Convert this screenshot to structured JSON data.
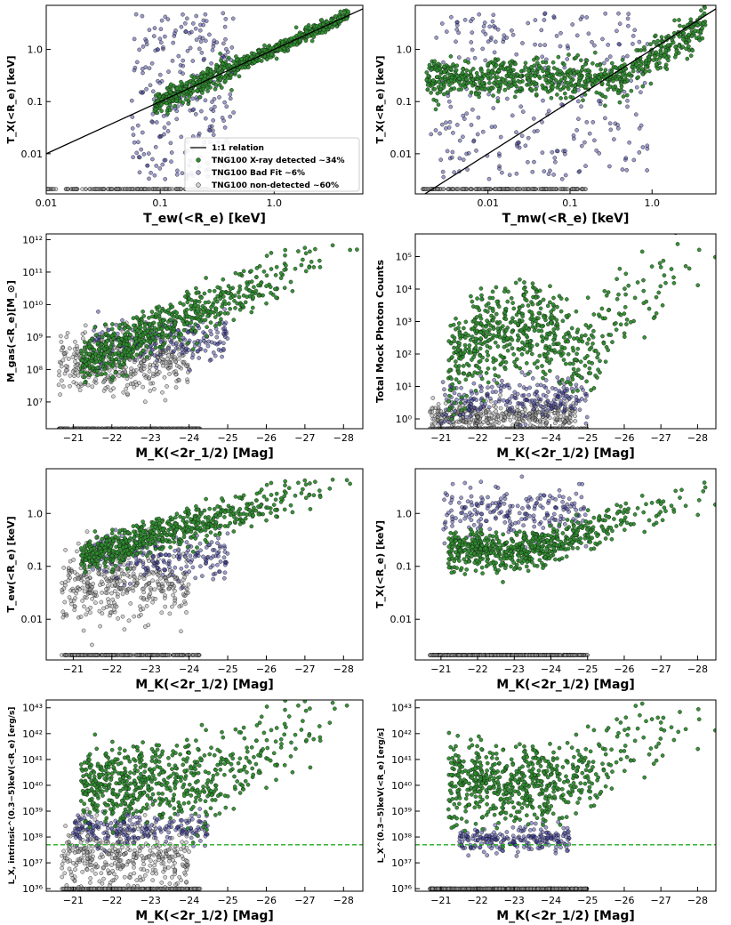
{
  "colors": {
    "detected": "#2e8b2e",
    "bad_fit": "#3a3a9a",
    "non_detected": "#9a9a9a",
    "one_to_one": "#000000",
    "limit_line": "#22aa22"
  },
  "chart_data": [
    {
      "type": "scatter",
      "xlabel": "T_ew(<R_e) [keV]",
      "ylabel": "T_X(<R_e) [keV]",
      "xscale": "log",
      "yscale": "log",
      "xlim": [
        0.01,
        6
      ],
      "ylim": [
        0.0017,
        7
      ],
      "xticks": [
        "0.01",
        "0.1",
        "1.0"
      ],
      "yticks": [
        "0.01",
        "0.1",
        "1.0"
      ],
      "one_to_one_line": true,
      "legend_position": "lower-right",
      "legend": [
        {
          "label": "1:1 relation",
          "kind": "line"
        },
        {
          "label": "TNG100 X-ray detected  ~34%",
          "kind": "detected"
        },
        {
          "label": "TNG100 Bad Fit  ~6%",
          "kind": "bad_fit"
        },
        {
          "label": "TNG100 non-detected  ~60%",
          "kind": "non_detected"
        }
      ],
      "series": [
        {
          "name": "TNG100 X-ray detected ~34%",
          "description": "tight ridge along 1:1 from T_ew≈0.1 to 5 keV",
          "x_range": [
            0.08,
            5
          ],
          "y_range": [
            0.07,
            4.5
          ]
        },
        {
          "name": "TNG100 Bad Fit ~6%",
          "description": "T_ew 0.05–0.5 keV, T_X scattered 0.003–5 keV",
          "x_range": [
            0.05,
            0.5
          ],
          "y_range": [
            0.003,
            5
          ]
        },
        {
          "name": "TNG100 non-detected ~60%",
          "description": "placed at plot floor, T_ew 0.01–1 keV",
          "x_range": [
            0.01,
            1
          ],
          "y_value": 0.0021
        }
      ]
    },
    {
      "type": "scatter",
      "xlabel": "T_mw(<R_e) [keV]",
      "ylabel": "T_X(<R_e) [keV]",
      "xscale": "log",
      "yscale": "log",
      "xlim": [
        0.0013,
        6
      ],
      "ylim": [
        0.0017,
        7
      ],
      "xticks": [
        "0.01",
        "0.1",
        "1.0"
      ],
      "yticks": [
        "0.01",
        "0.1",
        "1.0"
      ],
      "one_to_one_line": true,
      "series": [
        {
          "name": "TNG100 X-ray detected ~34%",
          "description": "T_X 0.1–0.6 keV flat band for T_mw 0.002–0.5, rising to 1:1 above 1 keV",
          "x_range": [
            0.0016,
            5
          ],
          "y_range": [
            0.07,
            4.5
          ]
        },
        {
          "name": "TNG100 Bad Fit ~6%",
          "description": "T_mw 0.002–1 keV, T_X 0.003–5 keV",
          "x_range": [
            0.002,
            1
          ],
          "y_range": [
            0.003,
            5
          ]
        },
        {
          "name": "TNG100 non-detected ~60%",
          "description": "at plot floor",
          "x_range": [
            0.0015,
            0.2
          ],
          "y_value": 0.0021
        }
      ]
    },
    {
      "type": "scatter",
      "xlabel": "M_K(<2r_1/2) [Mag]",
      "ylabel": "M_gas(<R_e)[M_⊙]",
      "xscale": "linear",
      "yscale": "log",
      "x_inverted": true,
      "xlim": [
        -20.3,
        -28.5
      ],
      "ylim": [
        1500000.0,
        1500000000000.0
      ],
      "xticks": [
        "−21",
        "−22",
        "−23",
        "−24",
        "−25",
        "−26",
        "−27",
        "−28"
      ],
      "yticks": [
        "10⁷",
        "10⁸",
        "10⁹",
        "10¹⁰",
        "10¹¹",
        "10¹²"
      ],
      "series": [
        {
          "name": "TNG100 X-ray detected ~34%",
          "description": "upper envelope rising from 1e9 at −22.5 to 1e12 at −27.5",
          "x_range": [
            -21.8,
            -28
          ],
          "y_range": [
            300000000.0,
            800000000000.0
          ]
        },
        {
          "name": "TNG100 Bad Fit ~6%",
          "description": "below detected, 1e8–3e9",
          "x_range": [
            -21.5,
            -25
          ],
          "y_range": [
            100000000.0,
            3000000000.0
          ]
        },
        {
          "name": "TNG100 non-detected ~60%",
          "description": "dense cloud 1e7–1e9 at M_K −20.5 to −23.5, floor row",
          "x_range": [
            -20.5,
            -24.5
          ],
          "y_range": [
            2000000.0,
            2000000000.0
          ]
        }
      ]
    },
    {
      "type": "scatter",
      "xlabel": "M_K(<2r_1/2) [Mag]",
      "ylabel": "Total Mock Photon Counts",
      "xscale": "linear",
      "yscale": "log",
      "x_inverted": true,
      "xlim": [
        -20.3,
        -28.5
      ],
      "ylim": [
        0.5,
        500000.0
      ],
      "xticks": [
        "−21",
        "−22",
        "−23",
        "−24",
        "−25",
        "−26",
        "−27",
        "−28"
      ],
      "yticks": [
        "10⁰",
        "10¹",
        "10²",
        "10³",
        "10⁴",
        "10⁵"
      ],
      "series": [
        {
          "name": "TNG100 X-ray detected ~34%",
          "description": "broad hump peaking near −23.3 at 1e4; second branch rising to 4e5 at −27.5",
          "x_range": [
            -21,
            -28
          ],
          "y_range": [
            5,
            400000.0
          ]
        },
        {
          "name": "TNG100 Bad Fit ~6%",
          "description": "discrete rows at 1–10 counts",
          "x_range": [
            -21,
            -25
          ],
          "y_range": [
            1,
            20
          ]
        },
        {
          "name": "TNG100 non-detected ~60%",
          "description": "rows at 0.5–3 counts",
          "x_range": [
            -20.7,
            -25
          ],
          "y_range": [
            0.5,
            3
          ]
        }
      ]
    },
    {
      "type": "scatter",
      "xlabel": "M_K(<2r_1/2) [Mag]",
      "ylabel": "T_ew(<R_e) [keV]",
      "xscale": "linear",
      "yscale": "log",
      "x_inverted": true,
      "xlim": [
        -20.3,
        -28.5
      ],
      "ylim": [
        0.0017,
        7
      ],
      "xticks": [
        "−21",
        "−22",
        "−23",
        "−24",
        "−25",
        "−26",
        "−27",
        "−28"
      ],
      "yticks": [
        "0.01",
        "0.1",
        "1.0"
      ],
      "series": [
        {
          "name": "TNG100 X-ray detected ~34%",
          "description": "band from 0.15 keV at −21.5 up to 4 keV at −27.5",
          "x_range": [
            -21.5,
            -27.8
          ],
          "y_range": [
            0.12,
            4.5
          ]
        },
        {
          "name": "TNG100 Bad Fit ~6%",
          "description": "just below detected band",
          "x_range": [
            -21.5,
            -25
          ],
          "y_range": [
            0.1,
            0.8
          ]
        },
        {
          "name": "TNG100 non-detected ~60%",
          "description": "grey cloud 0.01–0.3 keV, floor row",
          "x_range": [
            -20.7,
            -24.5
          ],
          "y_range": [
            0.008,
            0.4
          ]
        }
      ]
    },
    {
      "type": "scatter",
      "xlabel": "M_K(<2r_1/2) [Mag]",
      "ylabel": "T_X(<R_e) [keV]",
      "xscale": "linear",
      "yscale": "log",
      "x_inverted": true,
      "xlim": [
        -20.3,
        -28.5
      ],
      "ylim": [
        0.0017,
        7
      ],
      "xticks": [
        "−21",
        "−22",
        "−23",
        "−24",
        "−25",
        "−26",
        "−27",
        "−28"
      ],
      "yticks": [
        "0.01",
        "0.1",
        "1.0"
      ],
      "series": [
        {
          "name": "TNG100 X-ray detected ~34%",
          "description": "band 0.15–0.6 keV, rising to 4 keV at −27.5",
          "x_range": [
            -21,
            -27.8
          ],
          "y_range": [
            0.07,
            4.5
          ]
        },
        {
          "name": "TNG100 Bad Fit ~6%",
          "description": "rows 0.8–5 keV and sparse 0.003–0.05 keV",
          "x_range": [
            -21,
            -25
          ],
          "y_range": [
            0.003,
            5
          ]
        },
        {
          "name": "TNG100 non-detected ~60%",
          "description": "floor row",
          "x_range": [
            -20.7,
            -25
          ],
          "y_value": 0.0021
        }
      ]
    },
    {
      "type": "scatter",
      "xlabel": "M_K(<2r_1/2) [Mag]",
      "ylabel": "L_X, intrinsic^(0.3−5)keV(<R_e) [erg/s]",
      "xscale": "linear",
      "yscale": "log",
      "x_inverted": true,
      "xlim": [
        -20.3,
        -28.5
      ],
      "ylim": [
        8e+35,
        2e+43
      ],
      "xticks": [
        "−21",
        "−22",
        "−23",
        "−24",
        "−25",
        "−26",
        "−27",
        "−28"
      ],
      "yticks": [
        "10³⁶",
        "10³⁷",
        "10³⁸",
        "10³⁹",
        "10⁴⁰",
        "10⁴¹",
        "10⁴²",
        "10⁴³"
      ],
      "hline": 5e+37,
      "series": [
        {
          "name": "TNG100 X-ray detected ~34%",
          "description": "cloud 1e39–1e42 centred at −23, tail to 1e43 at −28",
          "x_range": [
            -21,
            -28
          ],
          "y_range": [
            5e+38,
            1e+43
          ]
        },
        {
          "name": "TNG100 Bad Fit ~6%",
          "description": "band 1e38–1e39",
          "x_range": [
            -21,
            -24.5
          ],
          "y_range": [
            1e+38,
            2e+39
          ]
        },
        {
          "name": "TNG100 non-detected ~60%",
          "description": "grey cloud 1e36–1e39, floor row",
          "x_range": [
            -20.7,
            -24.5
          ],
          "y_range": [
            1e+36,
            1e+39
          ]
        }
      ]
    },
    {
      "type": "scatter",
      "xlabel": "M_K(<2r_1/2) [Mag]",
      "ylabel": "L_X^(0.3−5)keV(<R_e) [erg/s]",
      "xscale": "linear",
      "yscale": "log",
      "x_inverted": true,
      "xlim": [
        -20.3,
        -28.5
      ],
      "ylim": [
        8e+35,
        2e+43
      ],
      "xticks": [
        "−21",
        "−22",
        "−23",
        "−24",
        "−25",
        "−26",
        "−27",
        "−28"
      ],
      "yticks": [
        "10³⁶",
        "10³⁷",
        "10³⁸",
        "10³⁹",
        "10⁴⁰",
        "10⁴¹",
        "10⁴²",
        "10⁴³"
      ],
      "hline": 5e+37,
      "series": [
        {
          "name": "TNG100 X-ray detected ~34%",
          "description": "cloud 1e39–1e42 centred at −23, tail to 1e43 at −28",
          "x_range": [
            -21,
            -28
          ],
          "y_range": [
            5e+38,
            1e+43
          ]
        },
        {
          "name": "TNG100 Bad Fit ~6%",
          "description": "rows at 3e37–5e38",
          "x_range": [
            -21.5,
            -24.5
          ],
          "y_range": [
            3e+37,
            5e+38
          ]
        },
        {
          "name": "TNG100 non-detected ~60%",
          "description": "floor row at 1e36",
          "x_range": [
            -20.7,
            -25
          ],
          "y_value": 1e+36
        }
      ]
    }
  ]
}
